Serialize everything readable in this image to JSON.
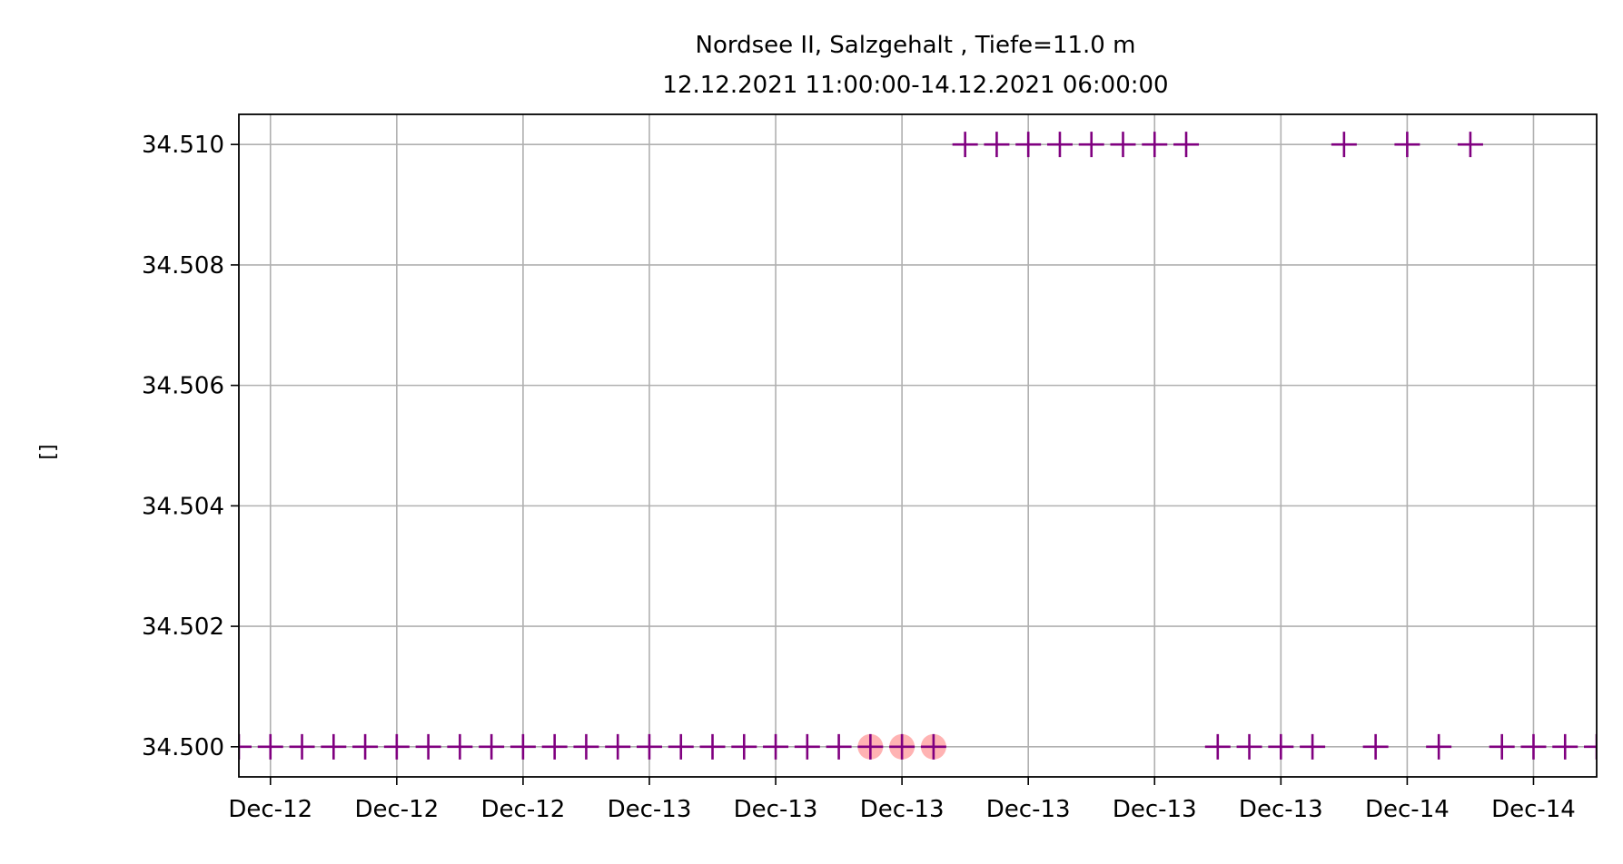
{
  "chart_data": {
    "type": "scatter",
    "title": "Nordsee II, Salzgehalt , Tiefe=11.0 m",
    "subtitle": "12.12.2021 11:00:00-14.12.2021 06:00:00",
    "xlabel": "",
    "ylabel": "[]",
    "x_ticks": [
      {
        "x": 0.0,
        "label": "Dec-12"
      },
      {
        "x": 4.0,
        "label": "Dec-12"
      },
      {
        "x": 8.0,
        "label": "Dec-12"
      },
      {
        "x": 12.0,
        "label": "Dec-13"
      },
      {
        "x": 16.0,
        "label": "Dec-13"
      },
      {
        "x": 20.0,
        "label": "Dec-13"
      },
      {
        "x": 24.0,
        "label": "Dec-13"
      },
      {
        "x": 28.0,
        "label": "Dec-13"
      },
      {
        "x": 32.0,
        "label": "Dec-13"
      },
      {
        "x": 36.0,
        "label": "Dec-14"
      },
      {
        "x": 40.0,
        "label": "Dec-14"
      }
    ],
    "y_ticks": [
      34.5,
      34.502,
      34.504,
      34.506,
      34.508,
      34.51
    ],
    "xlim": [
      -1.0,
      42.0
    ],
    "ylim": [
      34.4995,
      34.5105
    ],
    "grid": true,
    "colors": {
      "marker": "#800080",
      "highlight": "#ff9a9a",
      "grid": "#b0b0b0"
    },
    "series": [
      {
        "marker": "plus",
        "points": [
          {
            "x": -1.0,
            "y": 34.5
          },
          {
            "x": 0.0,
            "y": 34.5
          },
          {
            "x": 1.0,
            "y": 34.5
          },
          {
            "x": 2.0,
            "y": 34.5
          },
          {
            "x": 3.0,
            "y": 34.5
          },
          {
            "x": 4.0,
            "y": 34.5
          },
          {
            "x": 5.0,
            "y": 34.5
          },
          {
            "x": 6.0,
            "y": 34.5
          },
          {
            "x": 7.0,
            "y": 34.5
          },
          {
            "x": 8.0,
            "y": 34.5
          },
          {
            "x": 9.0,
            "y": 34.5
          },
          {
            "x": 10.0,
            "y": 34.5
          },
          {
            "x": 11.0,
            "y": 34.5
          },
          {
            "x": 12.0,
            "y": 34.5
          },
          {
            "x": 13.0,
            "y": 34.5
          },
          {
            "x": 14.0,
            "y": 34.5
          },
          {
            "x": 15.0,
            "y": 34.5
          },
          {
            "x": 16.0,
            "y": 34.5
          },
          {
            "x": 17.0,
            "y": 34.5
          },
          {
            "x": 18.0,
            "y": 34.5
          },
          {
            "x": 19.0,
            "y": 34.5
          },
          {
            "x": 20.0,
            "y": 34.5
          },
          {
            "x": 21.0,
            "y": 34.5
          },
          {
            "x": 22.0,
            "y": 34.51
          },
          {
            "x": 23.0,
            "y": 34.51
          },
          {
            "x": 24.0,
            "y": 34.51
          },
          {
            "x": 25.0,
            "y": 34.51
          },
          {
            "x": 26.0,
            "y": 34.51
          },
          {
            "x": 27.0,
            "y": 34.51
          },
          {
            "x": 28.0,
            "y": 34.51
          },
          {
            "x": 29.0,
            "y": 34.51
          },
          {
            "x": 30.0,
            "y": 34.5
          },
          {
            "x": 31.0,
            "y": 34.5
          },
          {
            "x": 32.0,
            "y": 34.5
          },
          {
            "x": 33.0,
            "y": 34.5
          },
          {
            "x": 34.0,
            "y": 34.51
          },
          {
            "x": 35.0,
            "y": 34.5
          },
          {
            "x": 36.0,
            "y": 34.51
          },
          {
            "x": 37.0,
            "y": 34.5
          },
          {
            "x": 38.0,
            "y": 34.51
          },
          {
            "x": 39.0,
            "y": 34.5
          },
          {
            "x": 40.0,
            "y": 34.5
          },
          {
            "x": 41.0,
            "y": 34.5
          },
          {
            "x": 42.0,
            "y": 34.5
          }
        ]
      },
      {
        "marker": "circle",
        "points": [
          {
            "x": 19.0,
            "y": 34.5
          },
          {
            "x": 20.0,
            "y": 34.5
          },
          {
            "x": 21.0,
            "y": 34.5
          }
        ]
      }
    ]
  }
}
